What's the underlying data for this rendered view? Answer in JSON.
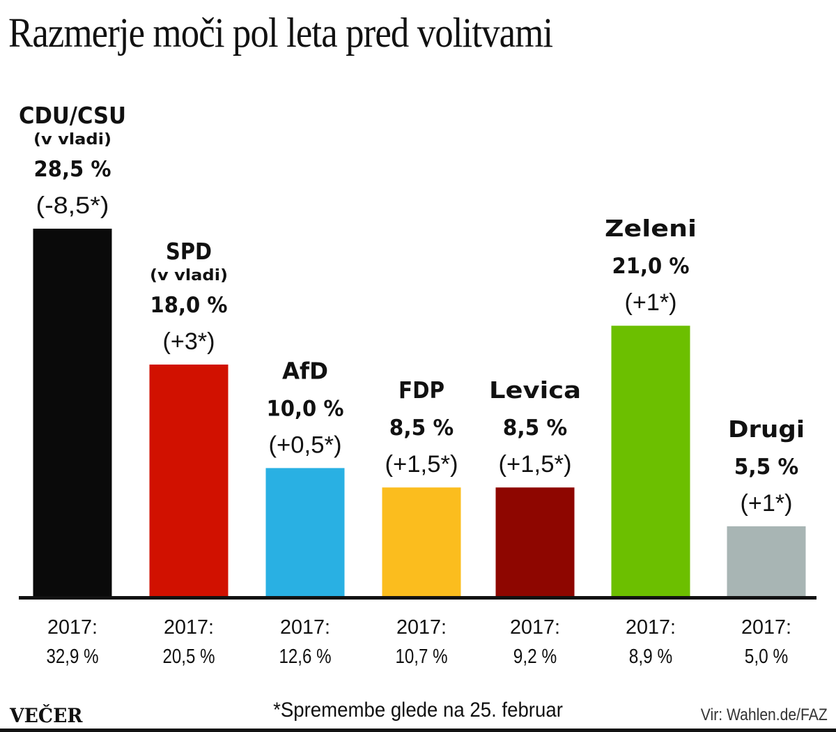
{
  "title": "Razmerje moči pol leta pred volitvami",
  "footer": {
    "logo": "VEČER",
    "footnote": "*Spremembe glede na 25. februar",
    "source": "Vir: Wahlen.de/FAZ"
  },
  "chart_data": {
    "type": "bar",
    "title": "Razmerje moči pol leta pred volitvami",
    "xlabel": "",
    "ylabel": "",
    "ylim": [
      0,
      30
    ],
    "grid": false,
    "unit": "%",
    "categories": [
      "CDU/CSU",
      "SPD",
      "AfD",
      "FDP",
      "Levica",
      "Zeleni",
      "Drugi"
    ],
    "values": [
      28.5,
      18.0,
      10.0,
      8.5,
      8.5,
      21.0,
      5.5
    ],
    "value_labels": [
      "28,5 %",
      "18,0 %",
      "10,0 %",
      "8,5 %",
      "8,5 %",
      "21,0 %",
      "5,5 %"
    ],
    "notes": [
      "(v vladi)",
      "(v vladi)",
      "",
      "",
      "",
      "",
      ""
    ],
    "changes": [
      -8.5,
      3,
      0.5,
      1.5,
      1.5,
      1,
      1
    ],
    "change_labels": [
      "(-8,5*)",
      "(+3*)",
      "(+0,5*)",
      "(+1,5*)",
      "(+1,5*)",
      "(+1*)",
      "(+1*)"
    ],
    "previous_label": "2017:",
    "previous_values": [
      32.9,
      20.5,
      12.6,
      10.7,
      9.2,
      8.9,
      5.0
    ],
    "previous_value_labels": [
      "32,9 %",
      "20,5 %",
      "12,6 %",
      "10,7 %",
      "9,2 %",
      "8,9 %",
      "5,0 %"
    ],
    "colors": [
      "#0a0a0a",
      "#d11100",
      "#29b0e3",
      "#fbbd1e",
      "#8e0600",
      "#6cbf00",
      "#a8b5b4"
    ]
  }
}
